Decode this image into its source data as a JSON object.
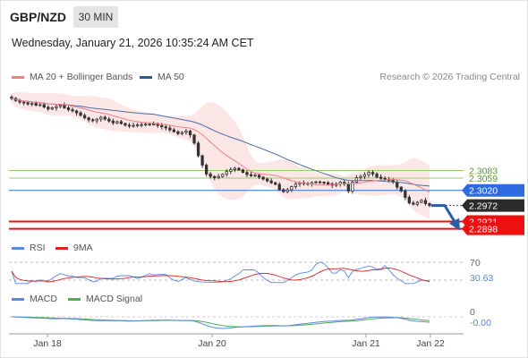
{
  "header": {
    "pair": "GBP/NZD",
    "timeframe": "30 MIN",
    "datetime": "Wednesday, January 21, 2026 10:35:24 AM CET",
    "copyright": "Research © 2026 Trading Central"
  },
  "colors": {
    "ma20": "#f08080",
    "bollinger_fill": "#fde2e2",
    "ma50": "#4a6fa5",
    "candle": "#333333",
    "resistance": "#9acb6e",
    "pivot": "#4a7ee0",
    "support": "#ee1111",
    "rsi": "#5b86e5",
    "rsi_ma": "#dd2222",
    "macd": "#5b86e5",
    "macd_signal": "#4caf50",
    "forecast_arrow": "#2a5caa"
  },
  "chart_data": [
    {
      "type": "candlestick",
      "title": "GBP/NZD",
      "legend": [
        "MA 20 + Bollinger Bands",
        "MA 50"
      ],
      "legend_position": "top-left",
      "x_ticks": [
        "Jan 18",
        "Jan 20",
        "Jan 21",
        "Jan 22"
      ],
      "ylim": [
        2.288,
        2.334
      ],
      "levels": {
        "resistance": [
          2.3083,
          2.3059
        ],
        "pivot": 2.302,
        "last": 2.2972,
        "support": [
          2.2921,
          2.2898
        ]
      },
      "close": [
        2.3312,
        2.3305,
        2.33,
        2.3298,
        2.3294,
        2.3296,
        2.329,
        2.3292,
        2.3284,
        2.3278,
        2.3282,
        2.3286,
        2.329,
        2.3282,
        2.3276,
        2.3272,
        2.3266,
        2.3258,
        2.325,
        2.3244,
        2.3241,
        2.3246,
        2.3252,
        2.3246,
        2.324,
        2.3234,
        2.3238,
        2.3232,
        2.3227,
        2.3224,
        2.3226,
        2.3228,
        2.3229,
        2.323,
        2.3229,
        2.3231,
        2.3226,
        2.3222,
        2.3218,
        2.3212,
        2.3206,
        2.32,
        2.3204,
        2.3208,
        2.3196,
        2.317,
        2.313,
        2.31,
        2.3072,
        2.3064,
        2.306,
        2.3064,
        2.3071,
        2.308,
        2.3086,
        2.309,
        2.3085,
        2.3077,
        2.307,
        2.3066,
        2.3068,
        2.3062,
        2.3056,
        2.305,
        2.3044,
        2.3039,
        2.3022,
        2.3016,
        2.3022,
        2.3032,
        2.304,
        2.3044,
        2.3042,
        2.304,
        2.3045,
        2.3047,
        2.3046,
        2.3044,
        2.304,
        2.3036,
        2.304,
        2.3046,
        2.304,
        2.3018,
        2.3046,
        2.306,
        2.3064,
        2.307,
        2.3077,
        2.3072,
        2.3062,
        2.3058,
        2.3055,
        2.3052,
        2.3046,
        2.303,
        2.3018,
        2.2998,
        2.298,
        2.2976,
        2.2982,
        2.2988,
        2.2978,
        2.2972
      ]
    },
    {
      "type": "line",
      "title": "RSI",
      "legend": [
        "RSI",
        "9MA"
      ],
      "legend_position": "top-left",
      "y_labels": [
        "70"
      ],
      "ylim": [
        20,
        80
      ],
      "last_value": "30.63"
    },
    {
      "type": "line",
      "title": "MACD",
      "legend": [
        "MACD",
        "MACD Signal"
      ],
      "legend_position": "top-left",
      "y_labels": [
        "0"
      ],
      "last_value": "-0.00"
    }
  ]
}
